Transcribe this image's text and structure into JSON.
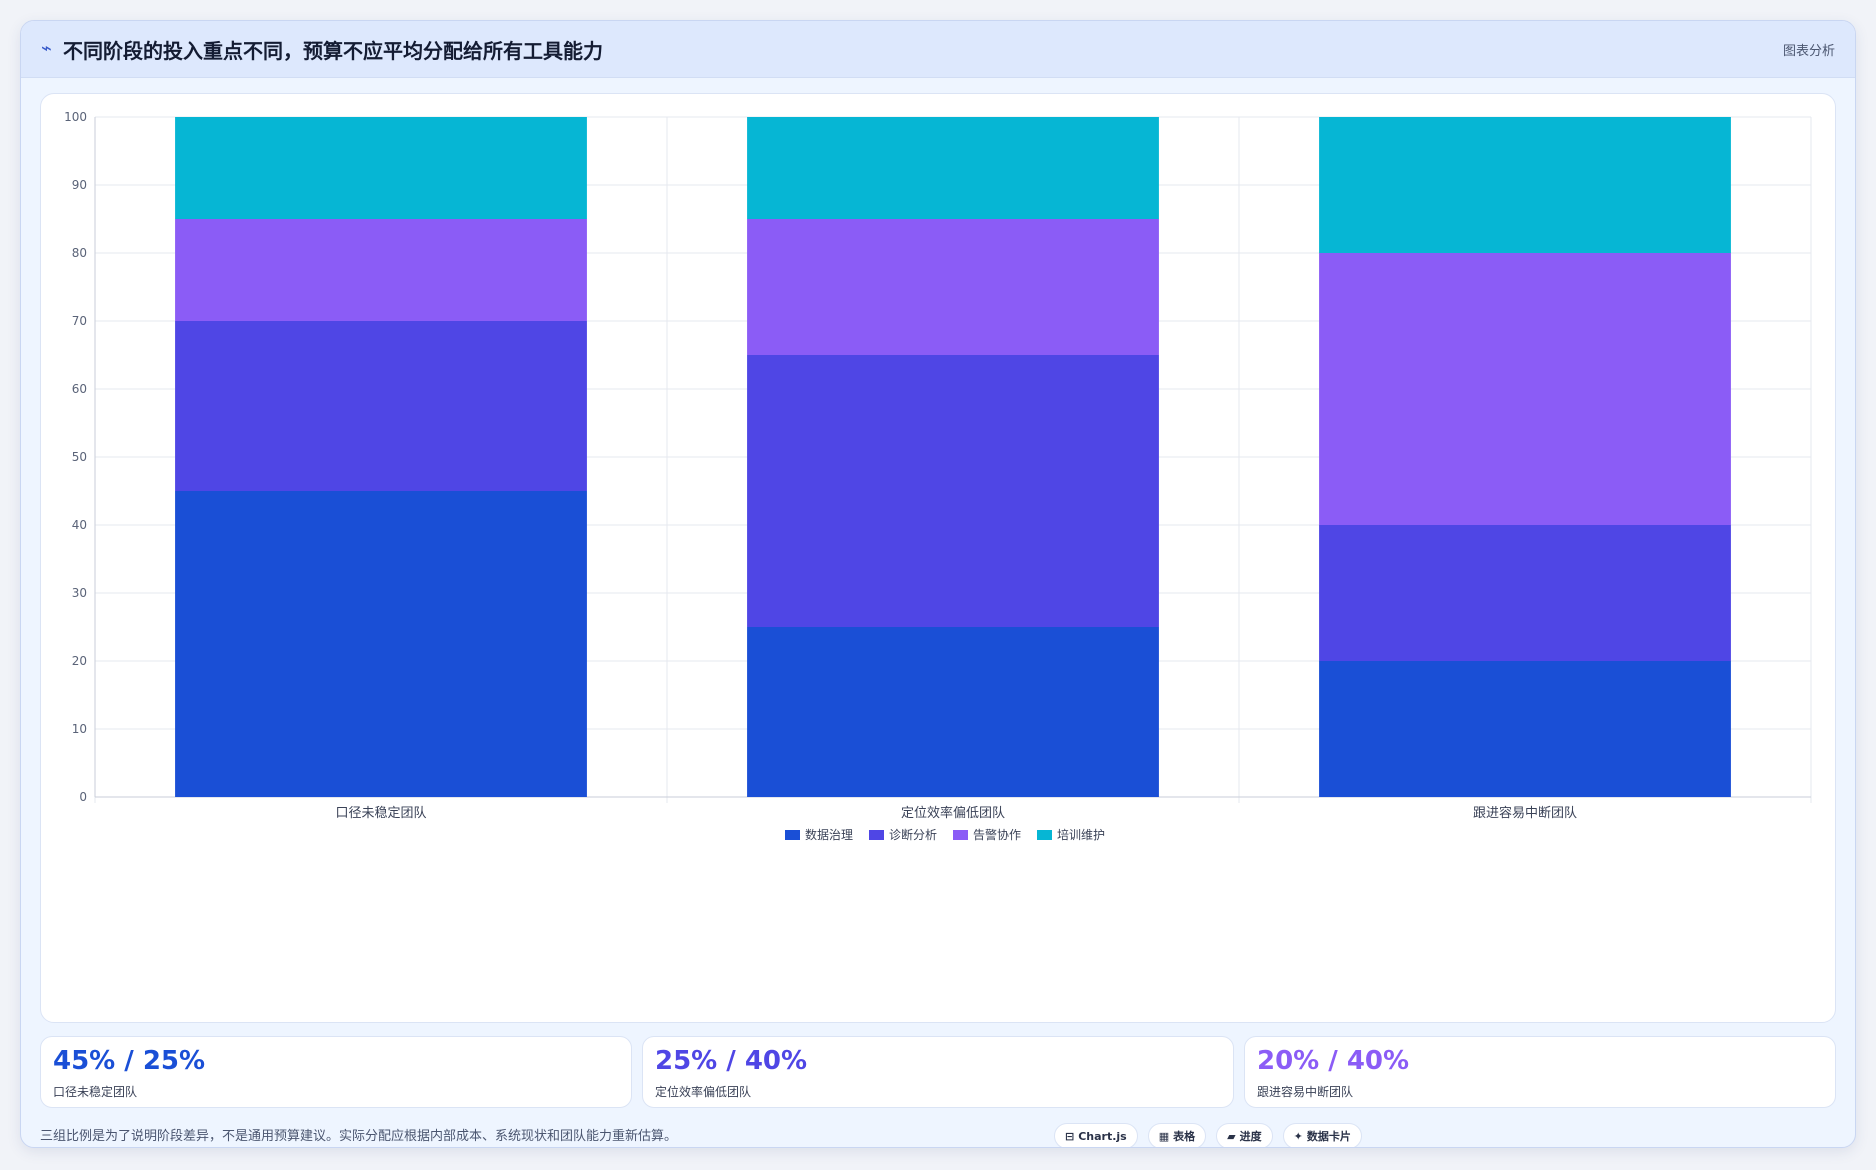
{
  "header": {
    "icon": "trend-line-icon",
    "title": "不同阶段的投入重点不同，预算不应平均分配给所有工具能力",
    "tag": "图表分析"
  },
  "chart_data": {
    "type": "bar",
    "stacked": true,
    "categories": [
      "口径未稳定团队",
      "定位效率偏低团队",
      "跟进容易中断团队"
    ],
    "series": [
      {
        "name": "数据治理",
        "color": "#1a4fd6",
        "values": [
          45,
          25,
          20
        ]
      },
      {
        "name": "诊断分析",
        "color": "#4f46e5",
        "values": [
          25,
          40,
          20
        ]
      },
      {
        "name": "告警协作",
        "color": "#8b5cf6",
        "values": [
          15,
          20,
          40
        ]
      },
      {
        "name": "培训维护",
        "color": "#06b6d4",
        "values": [
          15,
          15,
          20
        ]
      }
    ],
    "ylim": [
      0,
      100
    ],
    "yticks": [
      0,
      10,
      20,
      30,
      40,
      50,
      60,
      70,
      80,
      90,
      100
    ],
    "grid": true,
    "legend": "bottom-center",
    "title": "",
    "xlabel": "",
    "ylabel": ""
  },
  "stats": [
    {
      "value": "45% / 25%",
      "label": "口径未稳定团队",
      "color": "#1a4fd6"
    },
    {
      "value": "25% / 40%",
      "label": "定位效率偏低团队",
      "color": "#4f46e5"
    },
    {
      "value": "20% / 40%",
      "label": "跟进容易中断团队",
      "color": "#8b5cf6"
    }
  ],
  "footnote": "三组比例是为了说明阶段差异，不是通用预算建议。实际分配应根据内部成本、系统现状和团队能力重新估算。",
  "badges": [
    {
      "icon": "chart-icon",
      "glyph": "⊟",
      "label": "Chart.js"
    },
    {
      "icon": "table-icon",
      "glyph": "▦",
      "label": "表格"
    },
    {
      "icon": "progress-icon",
      "glyph": "▰",
      "label": "进度"
    },
    {
      "icon": "sparkle-icon",
      "glyph": "✦",
      "label": "数据卡片"
    }
  ]
}
